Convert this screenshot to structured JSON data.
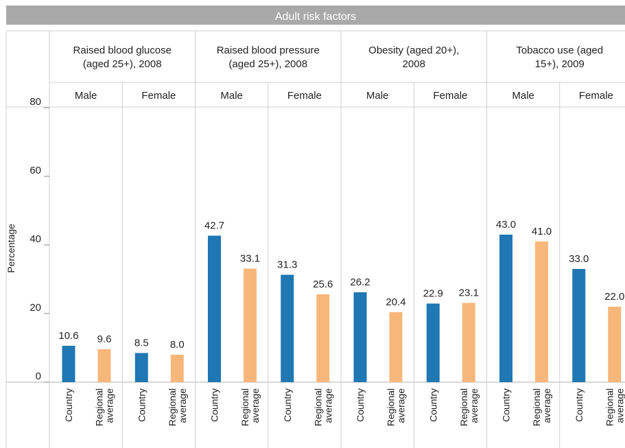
{
  "chart_data": {
    "type": "bar",
    "title": "Adult risk factors",
    "ylabel": "Percentage",
    "ylim": [
      0,
      80
    ],
    "yticks": [
      0,
      20,
      40,
      60,
      80
    ],
    "groups": [
      {
        "name": "Raised blood glucose (aged 25+), 2008",
        "name_lines": [
          "Raised blood glucose",
          "(aged 25+), 2008"
        ],
        "sexes": [
          {
            "name": "Male",
            "values": [
              10.6,
              9.6
            ],
            "labels": [
              "10.6",
              "9.6"
            ]
          },
          {
            "name": "Female",
            "values": [
              8.5,
              8.0
            ],
            "labels": [
              "8.5",
              "8.0"
            ]
          }
        ]
      },
      {
        "name": "Raised blood pressure (aged 25+), 2008",
        "name_lines": [
          "Raised blood pressure",
          "(aged 25+), 2008"
        ],
        "sexes": [
          {
            "name": "Male",
            "values": [
              42.7,
              33.1
            ],
            "labels": [
              "42.7",
              "33.1"
            ]
          },
          {
            "name": "Female",
            "values": [
              31.3,
              25.6
            ],
            "labels": [
              "31.3",
              "25.6"
            ]
          }
        ]
      },
      {
        "name": "Obesity (aged 20+), 2008",
        "name_lines": [
          "Obesity (aged 20+),",
          "2008"
        ],
        "sexes": [
          {
            "name": "Male",
            "values": [
              26.2,
              20.4
            ],
            "labels": [
              "26.2",
              "20.4"
            ]
          },
          {
            "name": "Female",
            "values": [
              22.9,
              23.1
            ],
            "labels": [
              "22.9",
              "23.1"
            ]
          }
        ]
      },
      {
        "name": "Tobacco use (aged 15+), 2009",
        "name_lines": [
          "Tobacco use (aged",
          "15+), 2009"
        ],
        "sexes": [
          {
            "name": "Male",
            "values": [
              43.0,
              41.0
            ],
            "labels": [
              "43.0",
              "41.0"
            ]
          },
          {
            "name": "Female",
            "values": [
              33.0,
              22.0
            ],
            "labels": [
              "33.0",
              "22.0"
            ]
          }
        ]
      }
    ],
    "bar_categories": [
      {
        "lines": [
          "Country"
        ]
      },
      {
        "lines": [
          "Regional",
          "average"
        ]
      }
    ],
    "colors": {
      "Country": "#1f77b4",
      "Regional average": "#f7b77a",
      "title_bar": "#a9a9a9",
      "grid": "#d0d0d0"
    }
  }
}
